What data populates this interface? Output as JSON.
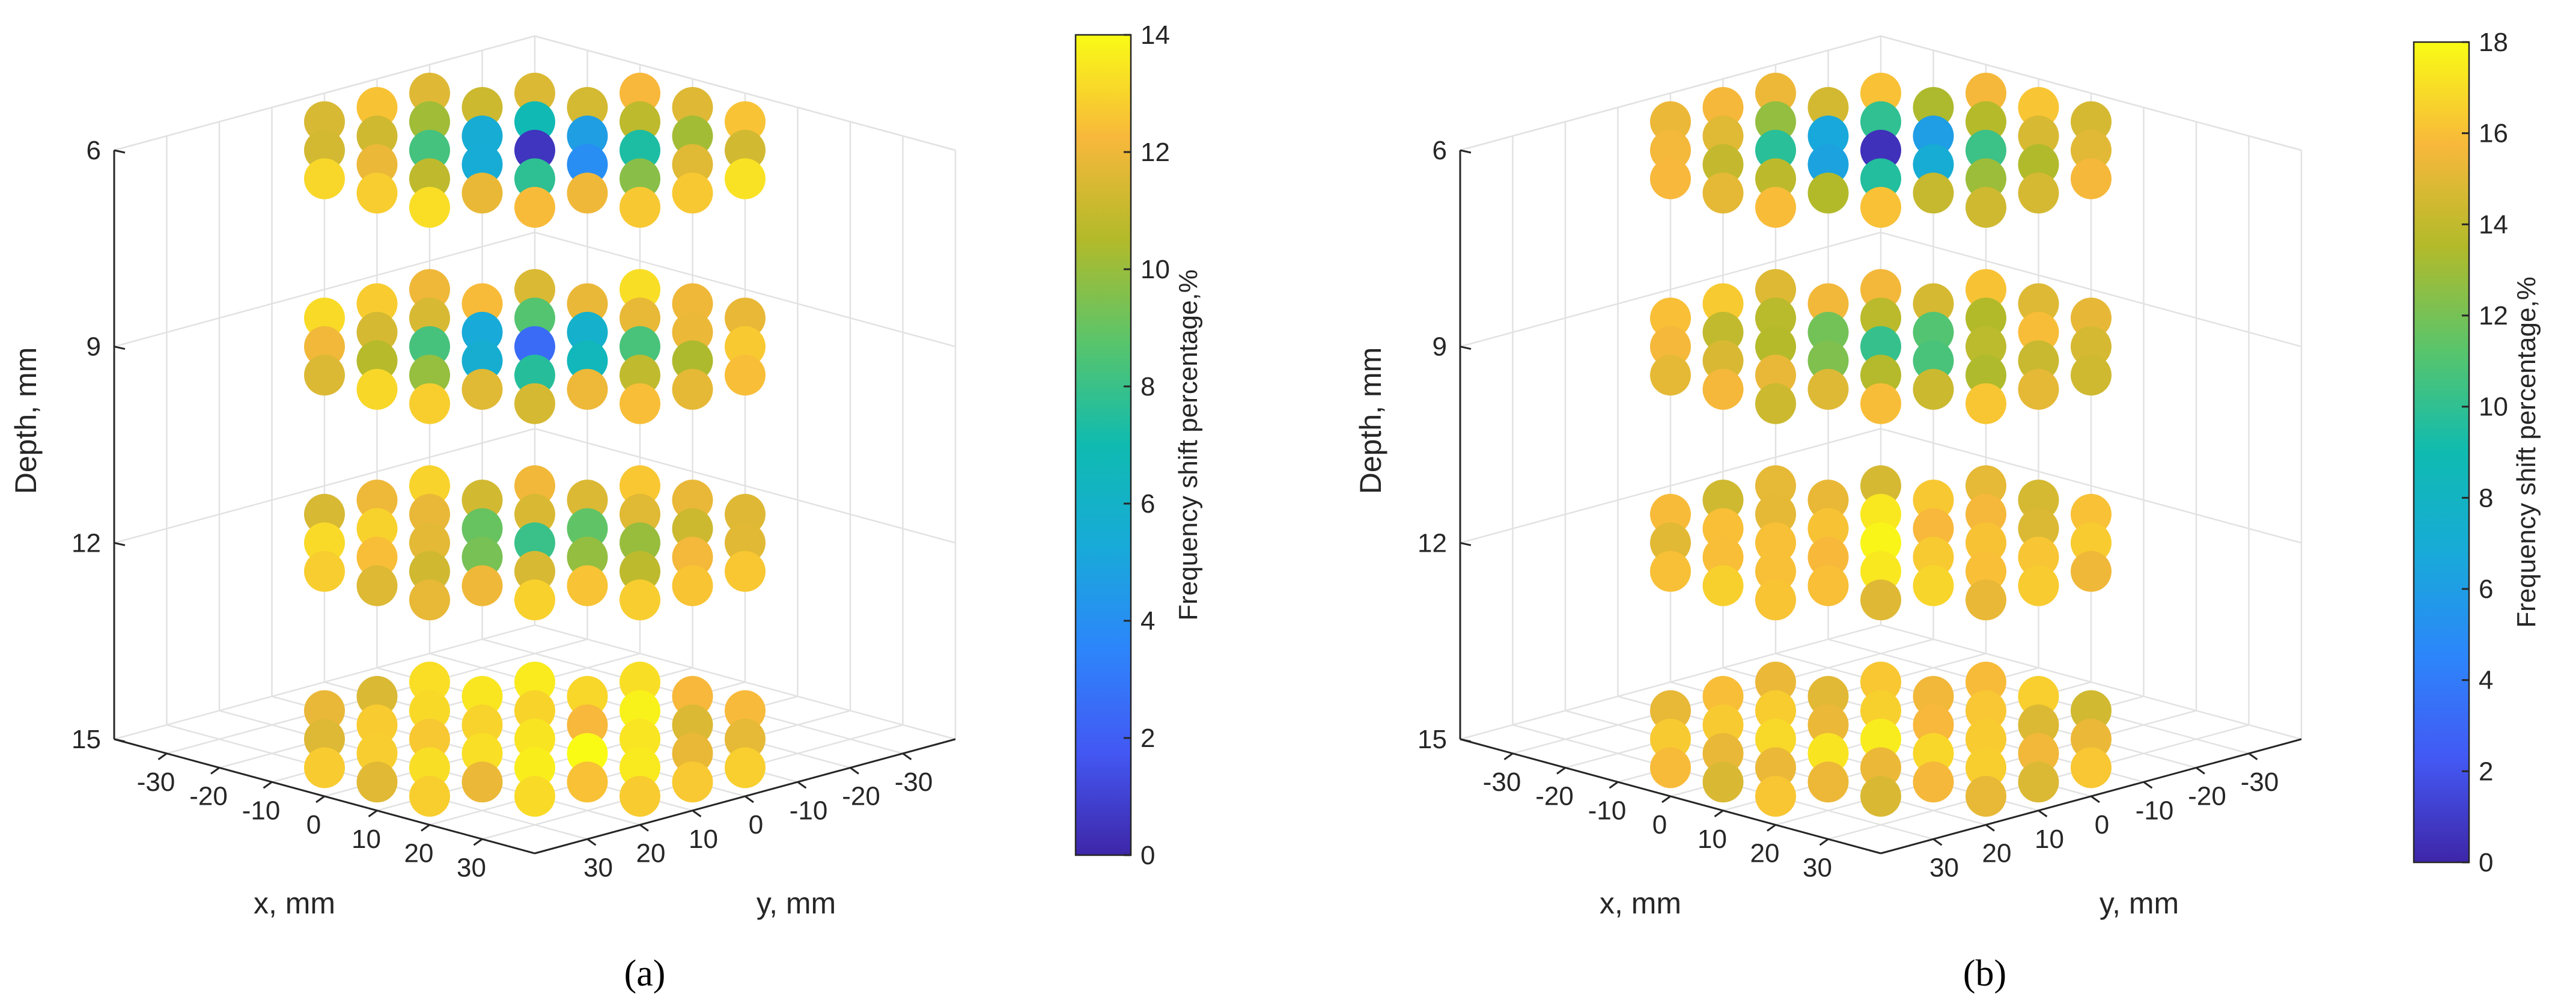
{
  "figure": {
    "panel_labels": [
      "(a)",
      "(b)"
    ]
  },
  "chart_data": [
    {
      "type": "scatter",
      "panel": "(a)",
      "title": "",
      "xlabel": "x, mm",
      "ylabel": "y, mm",
      "zlabel": "Depth, mm",
      "colorbar_label": "Frequency shift percentage,%",
      "x_ticks": [
        "-30",
        "-20",
        "-10",
        "0",
        "10",
        "20",
        "30"
      ],
      "y_ticks": [
        "30",
        "20",
        "10",
        "0",
        "-10",
        "-20",
        "-30"
      ],
      "z_ticks": [
        "6",
        "9",
        "12",
        "15"
      ],
      "colorbar_ticks": [
        "0",
        "2",
        "4",
        "6",
        "8",
        "10",
        "12",
        "14"
      ],
      "xlim": [
        -40,
        40
      ],
      "ylim": [
        -40,
        40
      ],
      "zlim": [
        6,
        15
      ],
      "clim": [
        0,
        14
      ],
      "depths": [
        6,
        9,
        12,
        15
      ],
      "grid_positions_mm": [
        -30,
        -20,
        -10,
        0,
        10,
        20,
        30
      ],
      "layers": [
        {
          "depth": 6,
          "center_value": 0.5,
          "min_value": 0.5,
          "background_value": 12.5
        },
        {
          "depth": 9,
          "center_value": 2.5,
          "min_value": 2.5,
          "background_value": 12.5
        },
        {
          "depth": 12,
          "center_value": 8.5,
          "min_value": 8.0,
          "background_value": 12.5
        },
        {
          "depth": 15,
          "center_value": 13.5,
          "min_value": 11.5,
          "background_value": 12.5
        }
      ]
    },
    {
      "type": "scatter",
      "panel": "(b)",
      "title": "",
      "xlabel": "x, mm",
      "ylabel": "y, mm",
      "zlabel": "Depth, mm",
      "colorbar_label": "Frequency shift percentage,%",
      "x_ticks": [
        "-30",
        "-20",
        "-10",
        "0",
        "10",
        "20",
        "30"
      ],
      "y_ticks": [
        "30",
        "20",
        "10",
        "0",
        "-10",
        "-20",
        "-30"
      ],
      "z_ticks": [
        "6",
        "9",
        "12",
        "15"
      ],
      "colorbar_ticks": [
        "0",
        "2",
        "4",
        "6",
        "8",
        "10",
        "12",
        "14",
        "16",
        "18"
      ],
      "xlim": [
        -40,
        40
      ],
      "ylim": [
        -40,
        40
      ],
      "zlim": [
        6,
        15
      ],
      "clim": [
        0,
        18
      ],
      "depths": [
        6,
        9,
        12,
        15
      ],
      "grid_positions_mm": [
        -30,
        -20,
        -10,
        0,
        10,
        20,
        30
      ],
      "layers": [
        {
          "depth": 6,
          "center_value": 0.5,
          "min_value": 0.5,
          "background_value": 15.5
        },
        {
          "depth": 9,
          "center_value": 9.5,
          "min_value": 9.5,
          "background_value": 15.5
        },
        {
          "depth": 12,
          "center_value": 17.5,
          "min_value": 14.0,
          "background_value": 15.5
        },
        {
          "depth": 15,
          "center_value": 17.0,
          "min_value": 14.0,
          "background_value": 15.5
        }
      ]
    }
  ]
}
